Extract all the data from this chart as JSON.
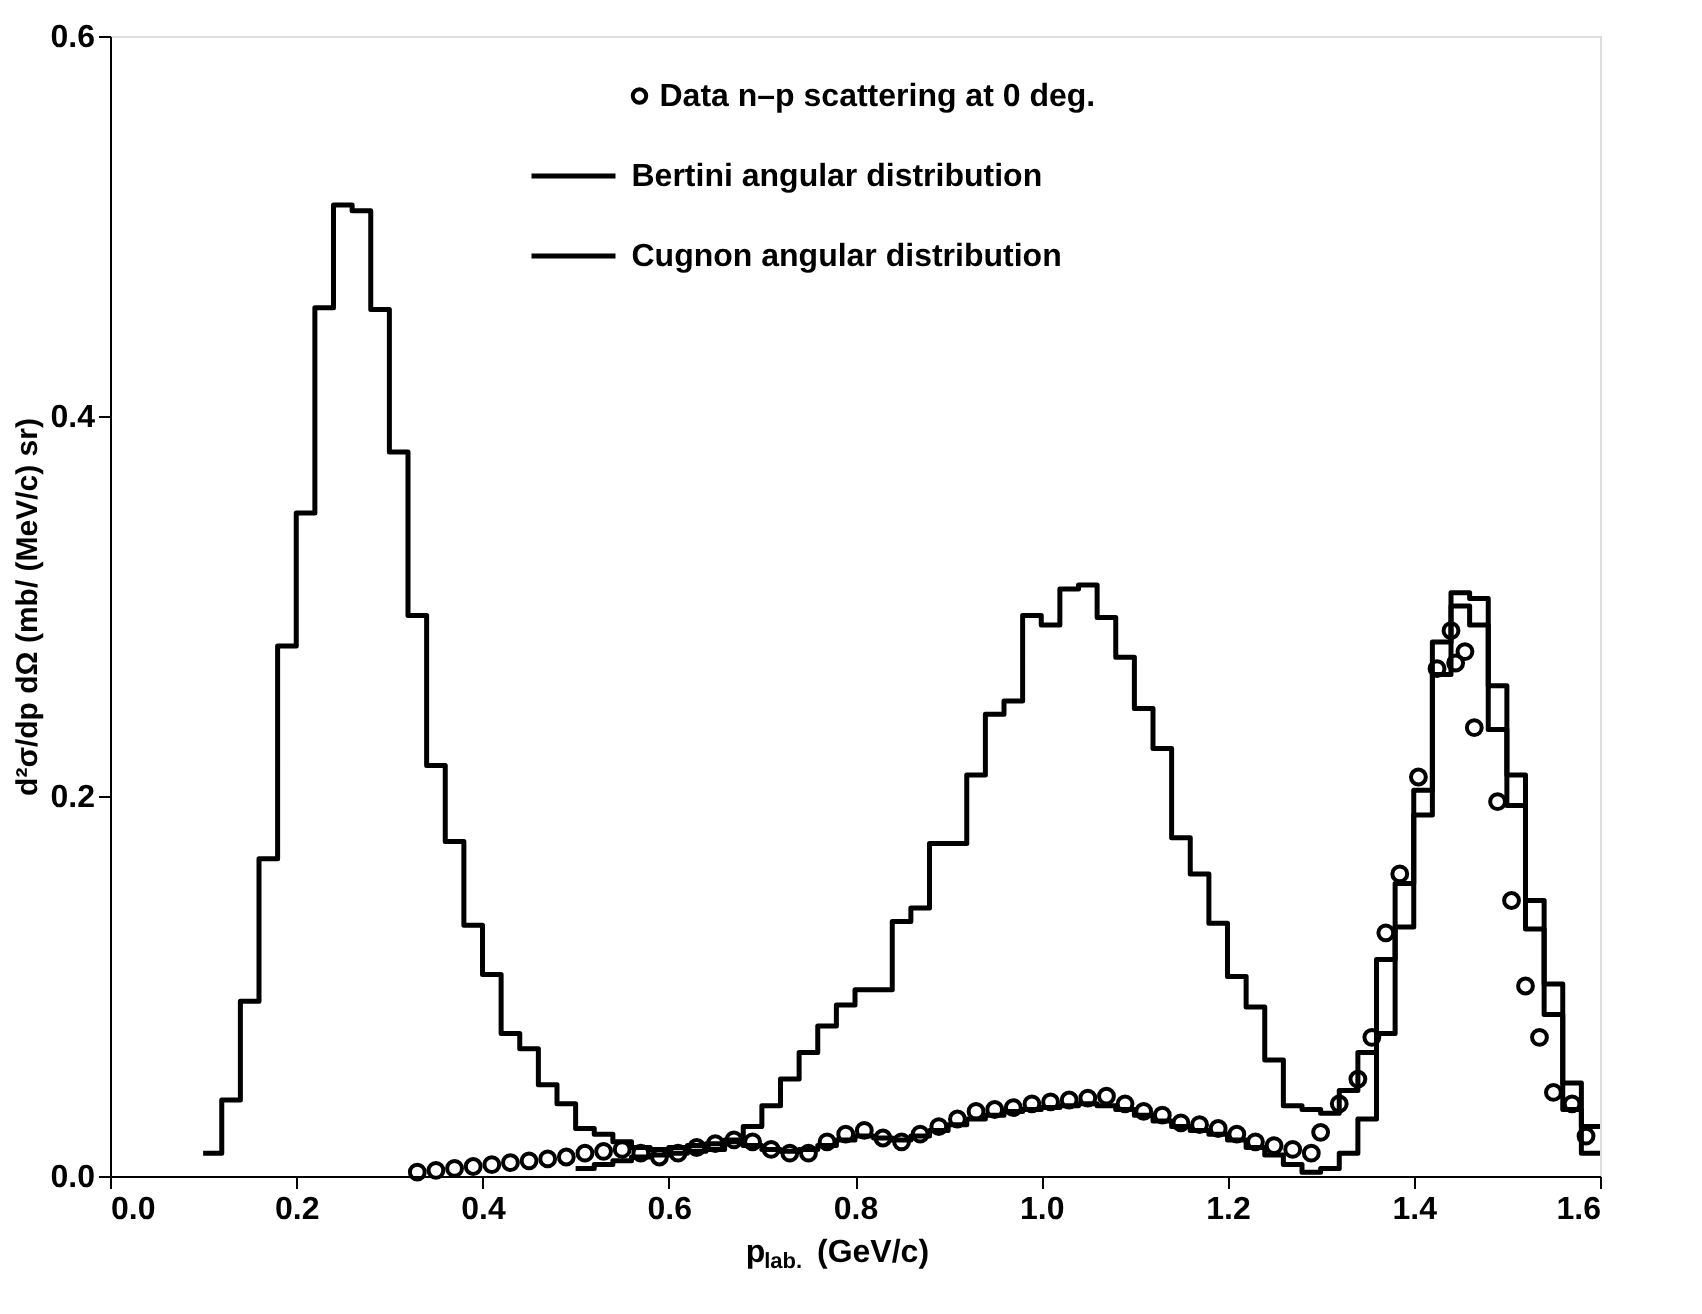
{
  "chart_data": {
    "type": "step",
    "xlabel": "p$_{lab.}$ (GeV/c)",
    "ylabel": "d²σ/dp dΩ (mb/ (MeV/c) sr)",
    "xlim": [
      0,
      1.6
    ],
    "ylim": [
      0,
      0.6
    ],
    "xticks": [
      {
        "value": 0,
        "label": "0.0"
      },
      {
        "value": 0.2,
        "label": "0.2"
      },
      {
        "value": 0.4,
        "label": "0.4"
      },
      {
        "value": 0.6,
        "label": "0.6"
      },
      {
        "value": 0.8,
        "label": "0.8"
      },
      {
        "value": 1.0,
        "label": "1.0"
      },
      {
        "value": 1.2,
        "label": "1.2"
      },
      {
        "value": 1.4,
        "label": "1.4"
      },
      {
        "value": 1.6,
        "label": "1.6"
      }
    ],
    "yticks": [
      {
        "value": 0,
        "label": "0.0"
      },
      {
        "value": 0.2,
        "label": "0.2"
      },
      {
        "value": 0.4,
        "label": "0.4"
      },
      {
        "value": 0.6,
        "label": "0.6"
      }
    ],
    "grid": false,
    "legend": "top",
    "series": [
      {
        "name": "Data n–p scattering at 0 deg.",
        "type": "scatter",
        "marker": "circle",
        "color": "#000000",
        "x": [
          0.33,
          0.35,
          0.37,
          0.39,
          0.41,
          0.43,
          0.45,
          0.47,
          0.49,
          0.51,
          0.53,
          0.55,
          0.57,
          0.59,
          0.61,
          0.63,
          0.65,
          0.67,
          0.69,
          0.71,
          0.73,
          0.75,
          0.77,
          0.79,
          0.81,
          0.83,
          0.85,
          0.87,
          0.89,
          0.91,
          0.93,
          0.95,
          0.97,
          0.99,
          1.01,
          1.03,
          1.05,
          1.07,
          1.09,
          1.11,
          1.13,
          1.15,
          1.17,
          1.19,
          1.21,
          1.23,
          1.25,
          1.27,
          1.29,
          1.3,
          1.32,
          1.34,
          1.355,
          1.37,
          1.385,
          1.405,
          1.425,
          1.44,
          1.445,
          1.455,
          1.465,
          1.49,
          1.505,
          1.52,
          1.535,
          1.55,
          1.57,
          1.585
        ],
        "values": [
          0.002,
          0.003,
          0.004,
          0.005,
          0.006,
          0.007,
          0.008,
          0.009,
          0.01,
          0.012,
          0.013,
          0.014,
          0.012,
          0.01,
          0.012,
          0.015,
          0.017,
          0.019,
          0.018,
          0.014,
          0.012,
          0.012,
          0.018,
          0.022,
          0.024,
          0.02,
          0.018,
          0.022,
          0.026,
          0.03,
          0.034,
          0.035,
          0.036,
          0.038,
          0.039,
          0.04,
          0.041,
          0.042,
          0.038,
          0.034,
          0.032,
          0.028,
          0.027,
          0.025,
          0.022,
          0.018,
          0.016,
          0.014,
          0.012,
          0.023,
          0.038,
          0.051,
          0.073,
          0.128,
          0.159,
          0.21,
          0.267,
          0.287,
          0.27,
          0.276,
          0.236,
          0.197,
          0.145,
          0.1,
          0.073,
          0.044,
          0.038,
          0.021
        ]
      },
      {
        "name": "Bertini angular distribution",
        "type": "step",
        "color": "#000000",
        "x": [
          0.5,
          0.52,
          0.54,
          0.56,
          0.58,
          0.6,
          0.62,
          0.64,
          0.66,
          0.68,
          0.7,
          0.72,
          0.74,
          0.76,
          0.78,
          0.8,
          0.82,
          0.84,
          0.86,
          0.88,
          0.9,
          0.92,
          0.94,
          0.96,
          0.98,
          1.0,
          1.02,
          1.04,
          1.06,
          1.08,
          1.1,
          1.12,
          1.14,
          1.16,
          1.18,
          1.2,
          1.22,
          1.24,
          1.26,
          1.28,
          1.3,
          1.32,
          1.34,
          1.36,
          1.38,
          1.4,
          1.42,
          1.44,
          1.46,
          1.48,
          1.5,
          1.52,
          1.54,
          1.56,
          1.58,
          1.6
        ],
        "values": [
          0.004,
          0.006,
          0.008,
          0.01,
          0.011,
          0.012,
          0.013,
          0.014,
          0.019,
          0.026,
          0.037,
          0.051,
          0.065,
          0.079,
          0.09,
          0.098,
          0.098,
          0.134,
          0.141,
          0.175,
          0.175,
          0.211,
          0.243,
          0.25,
          0.295,
          0.29,
          0.309,
          0.311,
          0.294,
          0.273,
          0.246,
          0.225,
          0.178,
          0.159,
          0.133,
          0.105,
          0.089,
          0.061,
          0.037,
          0.035,
          0.033,
          0.045,
          0.065,
          0.114,
          0.154,
          0.203,
          0.281,
          0.307,
          0.304,
          0.258,
          0.211,
          0.145,
          0.101,
          0.049,
          0.026,
          0.026
        ]
      },
      {
        "name": "Cugnon angular distribution",
        "type": "step",
        "color": "#000000",
        "x": [
          0.1,
          0.12,
          0.14,
          0.16,
          0.18,
          0.2,
          0.22,
          0.24,
          0.26,
          0.28,
          0.3,
          0.32,
          0.34,
          0.36,
          0.38,
          0.4,
          0.42,
          0.44,
          0.46,
          0.48,
          0.5,
          0.52,
          0.54,
          0.56,
          0.58,
          0.6,
          0.62,
          0.64,
          0.66,
          0.68,
          0.7,
          0.72,
          0.74,
          0.76,
          0.78,
          0.8,
          0.82,
          0.84,
          0.86,
          0.88,
          0.9,
          0.92,
          0.94,
          0.96,
          0.98,
          1.0,
          1.02,
          1.04,
          1.06,
          1.08,
          1.1,
          1.12,
          1.14,
          1.16,
          1.18,
          1.2,
          1.22,
          1.24,
          1.26,
          1.28,
          1.3,
          1.32,
          1.34,
          1.36,
          1.38,
          1.4,
          1.42,
          1.44,
          1.46,
          1.48,
          1.5,
          1.52,
          1.54,
          1.56,
          1.58,
          1.6
        ],
        "values": [
          0.012,
          0.04,
          0.092,
          0.167,
          0.279,
          0.349,
          0.457,
          0.511,
          0.508,
          0.456,
          0.381,
          0.295,
          0.216,
          0.176,
          0.132,
          0.106,
          0.075,
          0.067,
          0.048,
          0.038,
          0.025,
          0.022,
          0.018,
          0.015,
          0.014,
          0.015,
          0.016,
          0.017,
          0.018,
          0.016,
          0.014,
          0.013,
          0.014,
          0.016,
          0.019,
          0.021,
          0.02,
          0.019,
          0.021,
          0.024,
          0.027,
          0.03,
          0.032,
          0.034,
          0.035,
          0.036,
          0.037,
          0.038,
          0.037,
          0.035,
          0.032,
          0.029,
          0.026,
          0.024,
          0.022,
          0.019,
          0.015,
          0.011,
          0.006,
          0.002,
          0.004,
          0.012,
          0.03,
          0.075,
          0.131,
          0.19,
          0.264,
          0.3,
          0.29,
          0.235,
          0.195,
          0.13,
          0.085,
          0.035,
          0.012,
          0.012
        ]
      }
    ]
  }
}
